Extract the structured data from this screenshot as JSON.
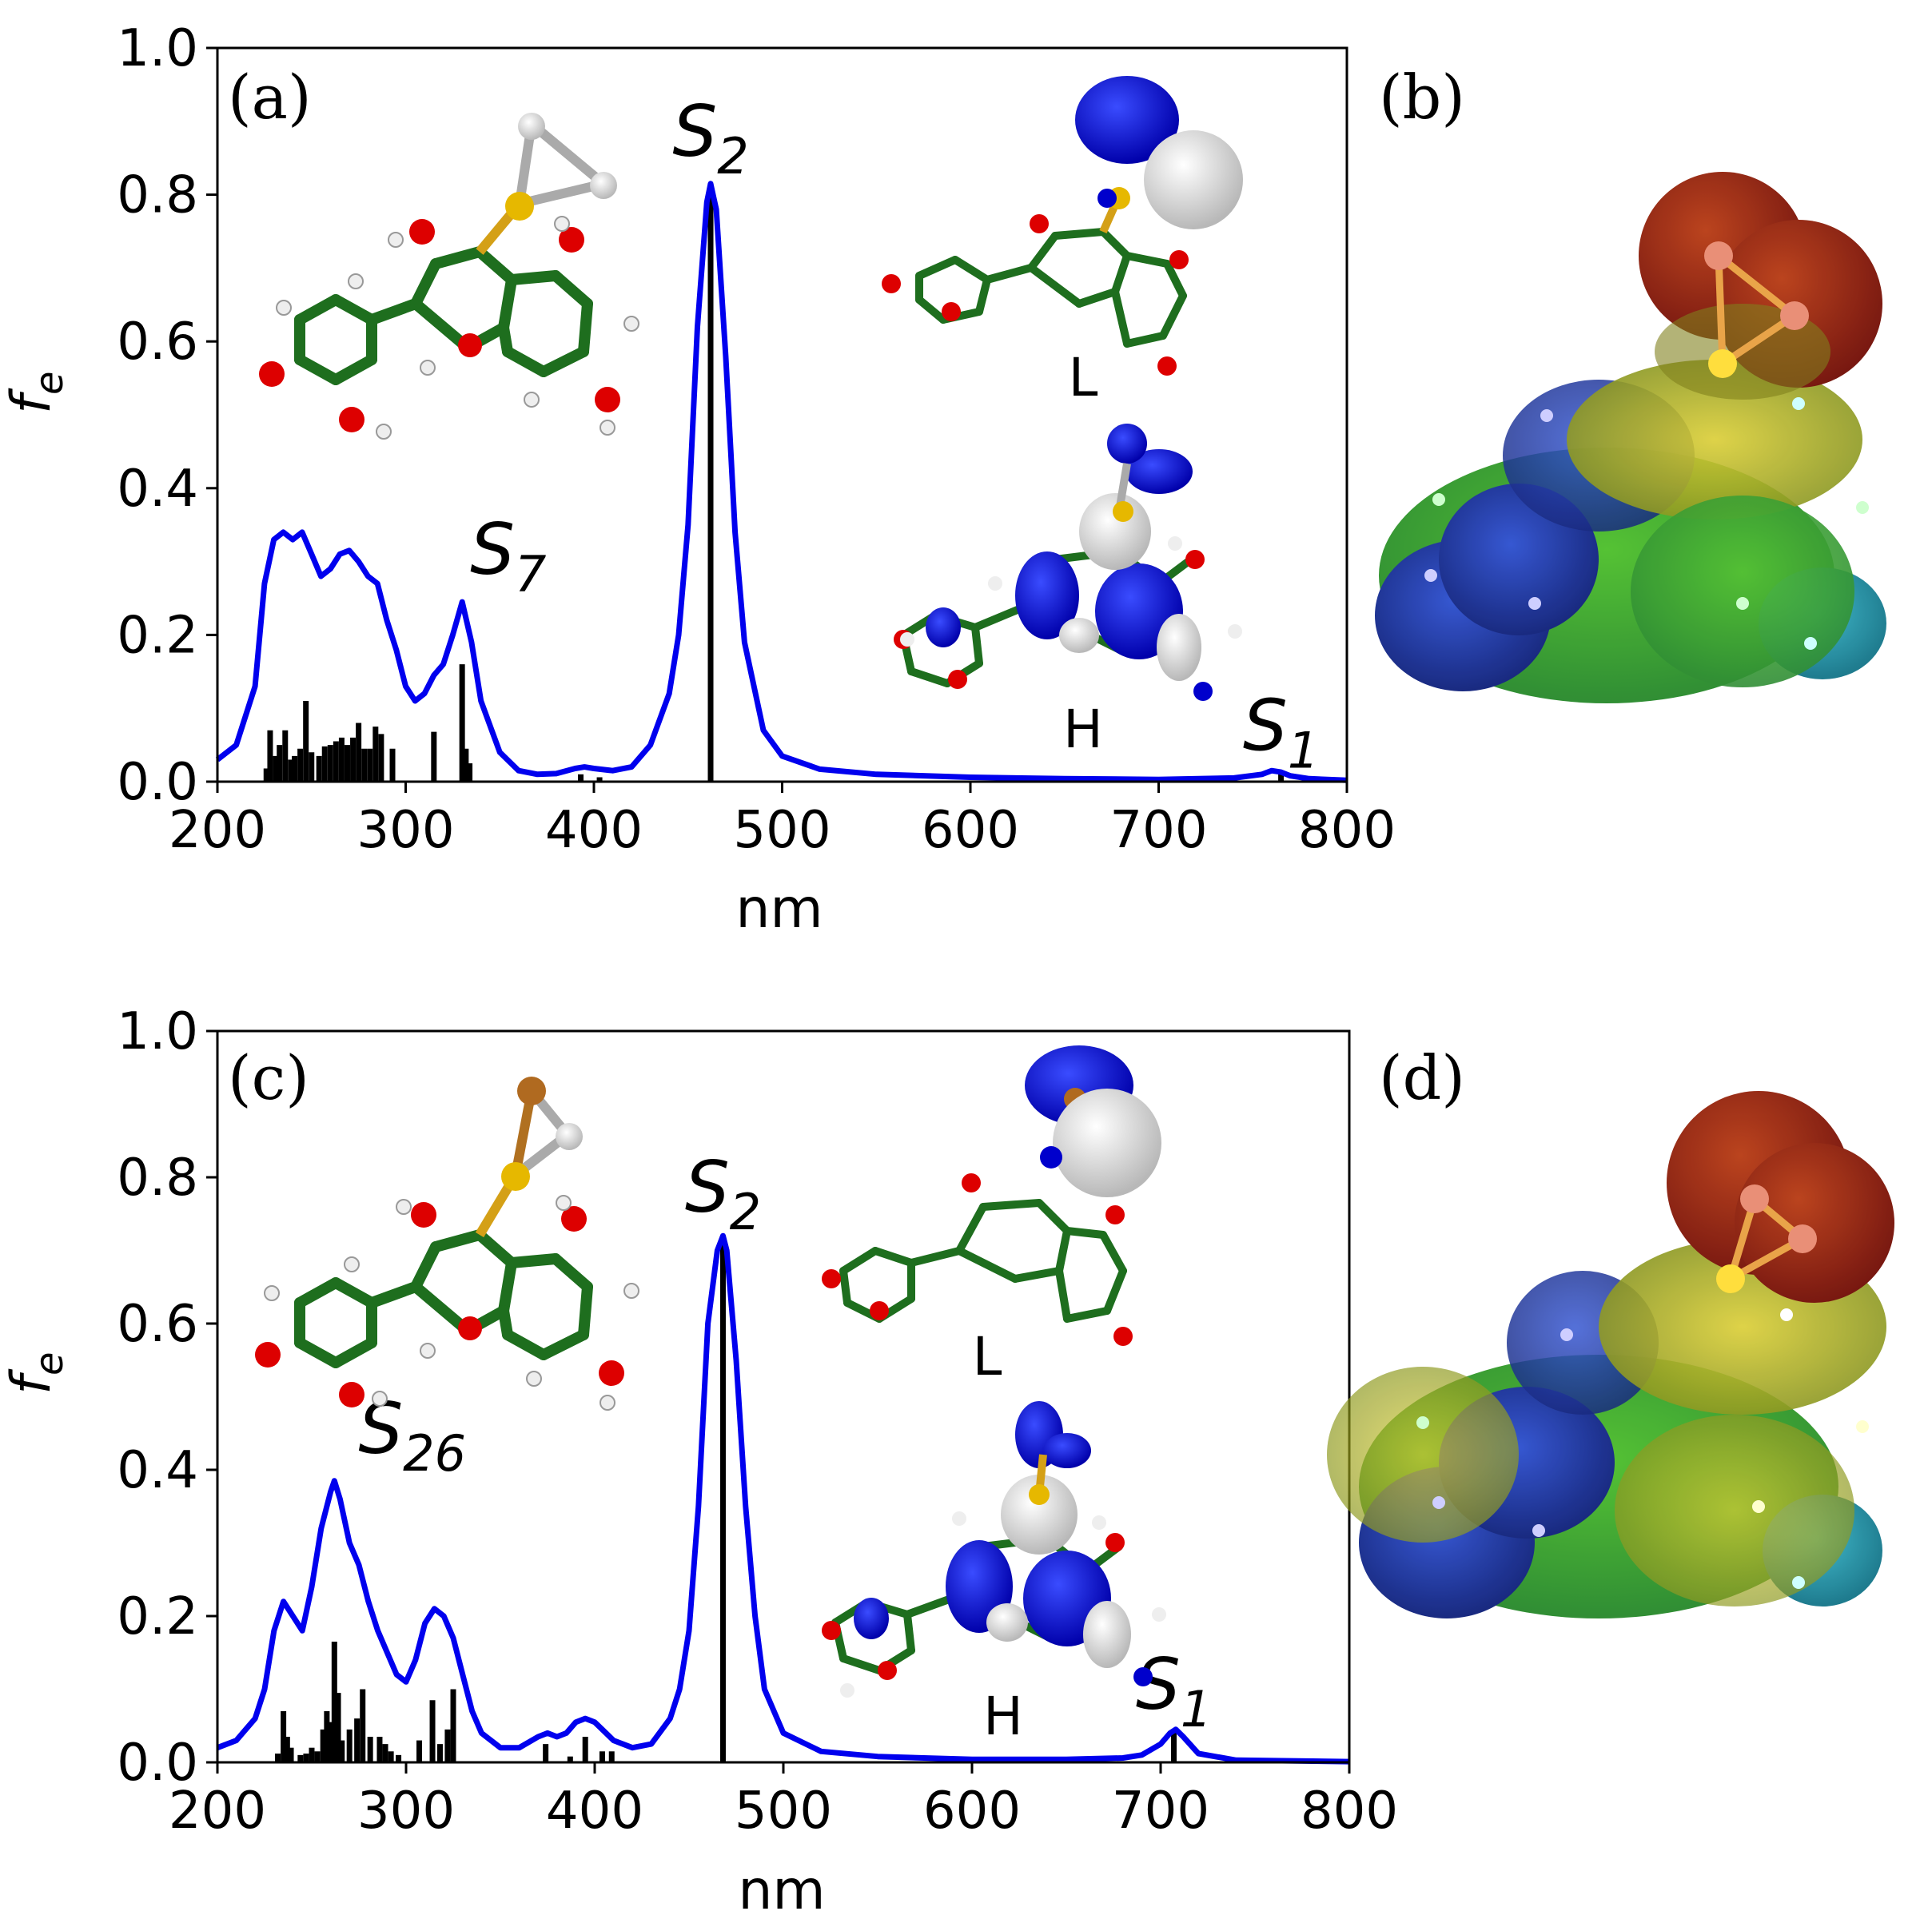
{
  "chart_data": [
    {
      "type": "line",
      "panel_label": "(a)",
      "xlabel": "nm",
      "ylabel": "f",
      "ylabel_sub": "e",
      "xlim": [
        200,
        800
      ],
      "ylim": [
        0.0,
        1.0
      ],
      "x_ticks": [
        "200",
        "300",
        "400",
        "500",
        "600",
        "700",
        "800"
      ],
      "y_ticks": [
        "0.0",
        "0.2",
        "0.4",
        "0.6",
        "0.8",
        "1.0"
      ],
      "series_color": "#0000ee",
      "stick_color": "#000000",
      "spectrum": {
        "x": [
          200,
          210,
          220,
          225,
          230,
          235,
          240,
          245,
          250,
          255,
          260,
          265,
          270,
          275,
          280,
          285,
          290,
          295,
          300,
          305,
          310,
          315,
          320,
          325,
          330,
          335,
          340,
          350,
          360,
          370,
          380,
          390,
          395,
          400,
          410,
          420,
          430,
          440,
          445,
          450,
          455,
          460,
          462,
          465,
          470,
          475,
          480,
          490,
          500,
          520,
          550,
          600,
          650,
          700,
          740,
          755,
          760,
          765,
          770,
          780,
          800
        ],
        "y": [
          0.03,
          0.05,
          0.13,
          0.27,
          0.33,
          0.34,
          0.33,
          0.34,
          0.31,
          0.28,
          0.29,
          0.31,
          0.315,
          0.3,
          0.28,
          0.27,
          0.22,
          0.18,
          0.13,
          0.11,
          0.12,
          0.145,
          0.16,
          0.2,
          0.245,
          0.19,
          0.11,
          0.04,
          0.015,
          0.01,
          0.011,
          0.018,
          0.02,
          0.018,
          0.015,
          0.02,
          0.05,
          0.12,
          0.2,
          0.35,
          0.62,
          0.79,
          0.815,
          0.78,
          0.58,
          0.34,
          0.19,
          0.07,
          0.035,
          0.017,
          0.01,
          0.006,
          0.004,
          0.003,
          0.005,
          0.01,
          0.015,
          0.013,
          0.008,
          0.004,
          0.002
        ]
      },
      "sticks": [
        [
          226,
          0.018
        ],
        [
          228,
          0.07
        ],
        [
          231,
          0.035
        ],
        [
          233,
          0.05
        ],
        [
          236,
          0.07
        ],
        [
          239,
          0.03
        ],
        [
          241,
          0.035
        ],
        [
          244,
          0.045
        ],
        [
          247,
          0.11
        ],
        [
          250,
          0.04
        ],
        [
          254,
          0.035
        ],
        [
          257,
          0.048
        ],
        [
          260,
          0.05
        ],
        [
          263,
          0.055
        ],
        [
          266,
          0.06
        ],
        [
          269,
          0.05
        ],
        [
          272,
          0.06
        ],
        [
          275,
          0.08
        ],
        [
          278,
          0.045
        ],
        [
          281,
          0.045
        ],
        [
          284,
          0.075
        ],
        [
          287,
          0.065
        ],
        [
          293,
          0.045
        ],
        [
          315,
          0.068
        ],
        [
          330,
          0.16
        ],
        [
          332,
          0.045
        ],
        [
          334,
          0.025
        ],
        [
          393,
          0.01
        ],
        [
          403,
          0.006
        ],
        [
          462,
          0.815
        ],
        [
          765,
          0.014
        ]
      ],
      "annotations": [
        {
          "base": "S",
          "sub": "2",
          "x": 462,
          "y": 0.84
        },
        {
          "base": "S",
          "sub": "7",
          "x": 330,
          "y": 0.27
        },
        {
          "base": "S",
          "sub": "1",
          "x": 765,
          "y": 0.03
        }
      ],
      "orbital_labels": [
        "L",
        "H"
      ]
    },
    {
      "type": "line",
      "panel_label": "(c)",
      "xlabel": "nm",
      "ylabel": "f",
      "ylabel_sub": "e",
      "xlim": [
        200,
        800
      ],
      "ylim": [
        0.0,
        1.0
      ],
      "x_ticks": [
        "200",
        "300",
        "400",
        "500",
        "600",
        "700",
        "800"
      ],
      "y_ticks": [
        "0.0",
        "0.2",
        "0.4",
        "0.6",
        "0.8",
        "1.0"
      ],
      "series_color": "#0000ee",
      "stick_color": "#000000",
      "spectrum": {
        "x": [
          200,
          210,
          220,
          225,
          230,
          235,
          240,
          245,
          250,
          255,
          260,
          262,
          265,
          270,
          275,
          280,
          285,
          290,
          295,
          300,
          305,
          310,
          315,
          320,
          325,
          330,
          335,
          340,
          350,
          360,
          370,
          375,
          380,
          385,
          390,
          395,
          400,
          410,
          420,
          430,
          440,
          445,
          450,
          455,
          460,
          465,
          468,
          470,
          475,
          480,
          485,
          490,
          500,
          520,
          550,
          600,
          650,
          680,
          690,
          700,
          705,
          708,
          712,
          720,
          740,
          800
        ],
        "y": [
          0.02,
          0.03,
          0.06,
          0.1,
          0.18,
          0.22,
          0.2,
          0.18,
          0.24,
          0.32,
          0.37,
          0.385,
          0.36,
          0.3,
          0.27,
          0.22,
          0.18,
          0.15,
          0.12,
          0.11,
          0.14,
          0.19,
          0.21,
          0.2,
          0.17,
          0.12,
          0.07,
          0.04,
          0.02,
          0.02,
          0.035,
          0.04,
          0.035,
          0.04,
          0.055,
          0.06,
          0.055,
          0.03,
          0.02,
          0.025,
          0.06,
          0.1,
          0.18,
          0.35,
          0.6,
          0.7,
          0.72,
          0.7,
          0.55,
          0.35,
          0.2,
          0.1,
          0.04,
          0.015,
          0.008,
          0.004,
          0.004,
          0.006,
          0.01,
          0.025,
          0.04,
          0.045,
          0.035,
          0.012,
          0.003,
          0.001
        ]
      },
      "sticks": [
        [
          232,
          0.012
        ],
        [
          235,
          0.07
        ],
        [
          237,
          0.035
        ],
        [
          239,
          0.02
        ],
        [
          244,
          0.01
        ],
        [
          247,
          0.012
        ],
        [
          250,
          0.02
        ],
        [
          253,
          0.015
        ],
        [
          256,
          0.045
        ],
        [
          258,
          0.07
        ],
        [
          260,
          0.055
        ],
        [
          262,
          0.165
        ],
        [
          264,
          0.095
        ],
        [
          266,
          0.03
        ],
        [
          270,
          0.045
        ],
        [
          274,
          0.06
        ],
        [
          277,
          0.1
        ],
        [
          281,
          0.035
        ],
        [
          286,
          0.035
        ],
        [
          289,
          0.025
        ],
        [
          292,
          0.015
        ],
        [
          296,
          0.01
        ],
        [
          307,
          0.03
        ],
        [
          314,
          0.085
        ],
        [
          318,
          0.025
        ],
        [
          322,
          0.045
        ],
        [
          325,
          0.1
        ],
        [
          374,
          0.025
        ],
        [
          387,
          0.008
        ],
        [
          395,
          0.035
        ],
        [
          404,
          0.015
        ],
        [
          409,
          0.015
        ],
        [
          468,
          0.72
        ],
        [
          707,
          0.045
        ]
      ],
      "annotations": [
        {
          "base": "S",
          "sub": "2",
          "x": 468,
          "y": 0.74
        },
        {
          "base": "S",
          "sub": "26",
          "x": 262,
          "y": 0.41
        },
        {
          "base": "S",
          "sub": "1",
          "x": 707,
          "y": 0.06
        }
      ],
      "orbital_labels": [
        "L",
        "H"
      ]
    }
  ],
  "side_panels": [
    "(b)",
    "(d)"
  ]
}
